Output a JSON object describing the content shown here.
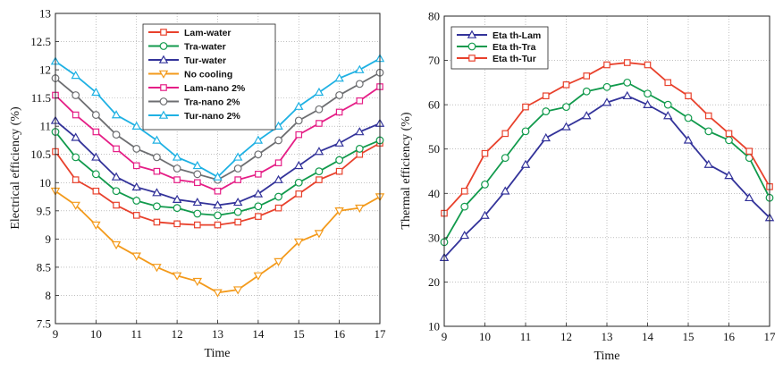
{
  "chart_data": [
    {
      "type": "line",
      "title": "",
      "xlabel": "Time",
      "ylabel": "Electrical efficiency (%)",
      "xlim": [
        9,
        17
      ],
      "ylim": [
        7.5,
        13
      ],
      "xticks": [
        "9",
        "10",
        "11",
        "12",
        "13",
        "14",
        "15",
        "16",
        "17"
      ],
      "yticks": [
        "7.5",
        "8",
        "8.5",
        "9",
        "9.5",
        "10",
        "10.5",
        "11",
        "11.5",
        "12",
        "12.5",
        "13"
      ],
      "grid": true,
      "legend_position": "top-center",
      "x": [
        9,
        9.5,
        10,
        10.5,
        11,
        11.5,
        12,
        12.5,
        13,
        13.5,
        14,
        14.5,
        15,
        15.5,
        16,
        16.5,
        17
      ],
      "series": [
        {
          "name": "Lam-water",
          "color": "#e8412c",
          "marker": "square",
          "values": [
            10.55,
            10.05,
            9.85,
            9.6,
            9.42,
            9.3,
            9.27,
            9.25,
            9.25,
            9.3,
            9.4,
            9.55,
            9.8,
            10.05,
            10.2,
            10.5,
            10.7
          ]
        },
        {
          "name": "Tra-water",
          "color": "#119a4c",
          "marker": "circle",
          "values": [
            10.9,
            10.45,
            10.15,
            9.85,
            9.68,
            9.58,
            9.55,
            9.45,
            9.42,
            9.48,
            9.58,
            9.75,
            10.0,
            10.2,
            10.4,
            10.6,
            10.75
          ]
        },
        {
          "name": "Tur-water",
          "color": "#33339a",
          "marker": "triangle-up",
          "values": [
            11.1,
            10.8,
            10.45,
            10.1,
            9.92,
            9.82,
            9.7,
            9.65,
            9.6,
            9.65,
            9.8,
            10.05,
            10.3,
            10.55,
            10.7,
            10.9,
            11.05
          ]
        },
        {
          "name": "No cooling",
          "color": "#f39a1b",
          "marker": "triangle-down",
          "values": [
            9.85,
            9.6,
            9.25,
            8.9,
            8.7,
            8.5,
            8.35,
            8.25,
            8.05,
            8.1,
            8.35,
            8.6,
            8.95,
            9.1,
            9.5,
            9.55,
            9.75
          ]
        },
        {
          "name": "Lam-nano 2%",
          "color": "#e51e86",
          "marker": "square",
          "values": [
            11.55,
            11.2,
            10.9,
            10.6,
            10.3,
            10.2,
            10.05,
            10.0,
            9.85,
            10.05,
            10.15,
            10.35,
            10.85,
            11.05,
            11.25,
            11.45,
            11.7
          ]
        },
        {
          "name": "Tra-nano 2%",
          "color": "#6d6e71",
          "marker": "circle",
          "values": [
            11.85,
            11.55,
            11.2,
            10.85,
            10.6,
            10.45,
            10.25,
            10.15,
            10.05,
            10.25,
            10.5,
            10.75,
            11.1,
            11.3,
            11.55,
            11.75,
            11.95
          ]
        },
        {
          "name": "Tur-nano 2%",
          "color": "#1fb1e3",
          "marker": "triangle-up",
          "values": [
            12.15,
            11.9,
            11.6,
            11.2,
            11.0,
            10.75,
            10.45,
            10.3,
            10.1,
            10.45,
            10.75,
            11.0,
            11.35,
            11.6,
            11.85,
            12.0,
            12.2
          ]
        }
      ]
    },
    {
      "type": "line",
      "title": "",
      "xlabel": "Time",
      "ylabel": "Thermal efficiency (%)",
      "xlim": [
        9,
        17
      ],
      "ylim": [
        10,
        80
      ],
      "xticks": [
        "9",
        "10",
        "11",
        "12",
        "13",
        "14",
        "15",
        "16",
        "17"
      ],
      "yticks": [
        "10",
        "20",
        "30",
        "40",
        "50",
        "60",
        "70",
        "80"
      ],
      "grid": true,
      "legend_position": "top-left",
      "x": [
        9,
        9.5,
        10,
        10.5,
        11,
        11.5,
        12,
        12.5,
        13,
        13.5,
        14,
        14.5,
        15,
        15.5,
        16,
        16.5,
        17
      ],
      "series": [
        {
          "name": "Eta th-Lam",
          "color": "#33339a",
          "marker": "triangle-up",
          "values": [
            25.5,
            30.5,
            35.0,
            40.5,
            46.5,
            52.5,
            55.0,
            57.5,
            60.5,
            62.0,
            60.0,
            57.5,
            52.0,
            46.5,
            44.0,
            39.0,
            34.5
          ]
        },
        {
          "name": "Eta th-Tra",
          "color": "#119a4c",
          "marker": "circle",
          "values": [
            29.0,
            37.0,
            42.0,
            48.0,
            54.0,
            58.5,
            59.5,
            63.0,
            64.0,
            65.0,
            62.5,
            60.0,
            57.0,
            54.0,
            52.0,
            48.0,
            39.0
          ]
        },
        {
          "name": "Eta th-Tur",
          "color": "#e8412c",
          "marker": "square",
          "values": [
            35.5,
            40.5,
            49.0,
            53.5,
            59.5,
            62.0,
            64.5,
            66.5,
            69.0,
            69.5,
            69.0,
            65.0,
            62.0,
            57.5,
            53.5,
            49.5,
            41.5
          ]
        }
      ]
    }
  ]
}
